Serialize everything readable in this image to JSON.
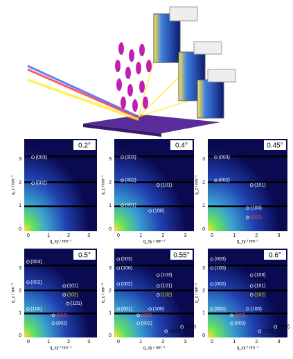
{
  "axes": {
    "y_label": "q_z / nm⁻¹",
    "x_label": "q_xy / nm⁻¹",
    "ticks": [
      "0",
      "1",
      "2",
      "3"
    ]
  },
  "panels": [
    {
      "angle": "0.2°",
      "peaks": [
        {
          "label": "(003)",
          "color": "#ffffff"
        },
        {
          "label": "(002)",
          "color": "#ffffff"
        }
      ]
    },
    {
      "angle": "0.4°",
      "peaks": [
        {
          "label": "(003)",
          "color": "#ffffff"
        },
        {
          "label": "(002)",
          "color": "#ffffff"
        },
        {
          "label": "(101)",
          "color": "#ffffff"
        },
        {
          "label": "(001)",
          "color": "#ffffff"
        },
        {
          "label": "(100)",
          "color": "#ffffff"
        }
      ]
    },
    {
      "angle": "0.45°",
      "peaks": [
        {
          "label": "(003)",
          "color": "#ffffff"
        },
        {
          "label": "(002)",
          "color": "#ffffff"
        },
        {
          "label": "(101)",
          "color": "#ffffff"
        },
        {
          "label": "(100)",
          "color": "#ffffff"
        },
        {
          "label": "(002)",
          "color": "#ff4040"
        }
      ]
    },
    {
      "angle": "0.5°",
      "peaks": [
        {
          "label": "(003)",
          "color": "#ffffff"
        },
        {
          "label": "(002)",
          "color": "#ffffff"
        },
        {
          "label": "(101)",
          "color": "#ffffff"
        },
        {
          "label": "(102)",
          "color": "#ffd700"
        },
        {
          "label": "(100)",
          "color": "#ffffff"
        },
        {
          "label": "(002)",
          "color": "#ff4040"
        },
        {
          "label": "(002)",
          "color": "#ffffff"
        },
        {
          "label": "(101)",
          "color": "#ffffff"
        }
      ]
    },
    {
      "angle": "0.55°",
      "peaks": [
        {
          "label": "(003)",
          "color": "#ffffff"
        },
        {
          "label": "(100)",
          "color": "#ffffff"
        },
        {
          "label": "(103)",
          "color": "#ffffff"
        },
        {
          "label": "(002)",
          "color": "#ffffff"
        },
        {
          "label": "(101)",
          "color": "#ffffff"
        },
        {
          "label": "(102)",
          "color": "#ffd700"
        },
        {
          "label": "(001)",
          "color": "#ffffff"
        },
        {
          "label": "(100)",
          "color": "#ffffff"
        },
        {
          "label": "(002)",
          "color": "#ff4040"
        },
        {
          "label": "(002)",
          "color": "#ffffff"
        },
        {
          "label": "(101)",
          "color": "#000000"
        },
        {
          "label": "(100)",
          "color": "#000000"
        }
      ]
    },
    {
      "angle": "0.6°",
      "peaks": [
        {
          "label": "(003)",
          "color": "#ffffff"
        },
        {
          "label": "(100)",
          "color": "#ffffff"
        },
        {
          "label": "(103)",
          "color": "#ffffff"
        },
        {
          "label": "(002)",
          "color": "#ffffff"
        },
        {
          "label": "(101)",
          "color": "#ffffff"
        },
        {
          "label": "(102)",
          "color": "#ffd700"
        },
        {
          "label": "(001)",
          "color": "#ffffff"
        },
        {
          "label": "(100)",
          "color": "#ffffff"
        },
        {
          "label": "(002)",
          "color": "#ff4040"
        },
        {
          "label": "(002)",
          "color": "#ffffff"
        },
        {
          "label": "(101)",
          "color": "#000000"
        },
        {
          "label": "(100)",
          "color": "#000000"
        }
      ]
    }
  ]
}
